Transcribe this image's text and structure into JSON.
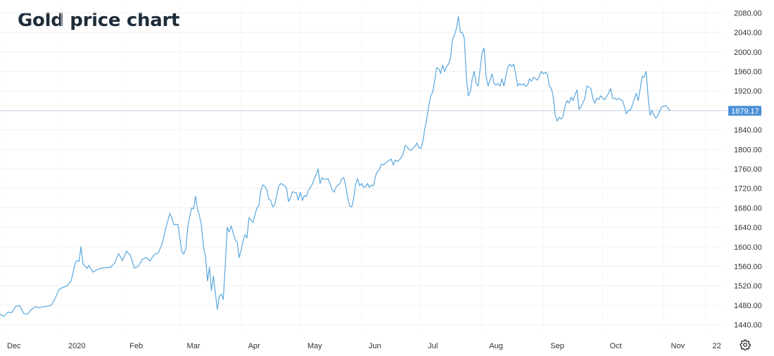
{
  "title": "Gold price chart",
  "settings_icon": "gear-icon",
  "chart_data": {
    "type": "line",
    "title": "Gold price chart",
    "xlabel": "",
    "ylabel": "",
    "ylim": [
      1425,
      2095
    ],
    "xlim": [
      0,
      365
    ],
    "y_ticks": [
      "1440.00",
      "1480.00",
      "1520.00",
      "1560.00",
      "1600.00",
      "1640.00",
      "1680.00",
      "1720.00",
      "1760.00",
      "1800.00",
      "1840.00",
      "1880.00",
      "1920.00",
      "1960.00",
      "2000.00",
      "2040.00",
      "2080.00"
    ],
    "x_ticks": [
      {
        "label": "Dec",
        "day": 0
      },
      {
        "label": "2020",
        "day": 31
      },
      {
        "label": "Feb",
        "day": 62
      },
      {
        "label": "Mar",
        "day": 91
      },
      {
        "label": "Apr",
        "day": 122
      },
      {
        "label": "May",
        "day": 152
      },
      {
        "label": "Jun",
        "day": 183
      },
      {
        "label": "Jul",
        "day": 213
      },
      {
        "label": "Aug",
        "day": 244
      },
      {
        "label": "Sep",
        "day": 275
      },
      {
        "label": "Oct",
        "day": 305
      },
      {
        "label": "Nov",
        "day": 336
      },
      {
        "label": "22",
        "day": 357
      }
    ],
    "last_price": 1879.17,
    "last_price_label": "1879.17",
    "grid": true,
    "colors": {
      "line": "#5aa7dd",
      "price_tag": "#4a90d9",
      "grid": "#f0f0f0"
    },
    "series": [
      {
        "values": [
          [
            0,
            1462
          ],
          [
            2,
            1457
          ],
          [
            4,
            1466
          ],
          [
            6,
            1465
          ],
          [
            8,
            1478
          ],
          [
            10,
            1479
          ],
          [
            12,
            1463
          ],
          [
            14,
            1462
          ],
          [
            16,
            1472
          ],
          [
            18,
            1477
          ],
          [
            20,
            1475
          ],
          [
            22,
            1477
          ],
          [
            24,
            1478
          ],
          [
            26,
            1480
          ],
          [
            28,
            1495
          ],
          [
            30,
            1513
          ],
          [
            32,
            1517
          ],
          [
            34,
            1520
          ],
          [
            36,
            1530
          ],
          [
            38,
            1565
          ],
          [
            39,
            1572
          ],
          [
            40,
            1570
          ],
          [
            41,
            1600
          ],
          [
            42,
            1565
          ],
          [
            44,
            1556
          ],
          [
            45,
            1562
          ],
          [
            47,
            1548
          ],
          [
            50,
            1555
          ],
          [
            53,
            1557
          ],
          [
            56,
            1558
          ],
          [
            58,
            1567
          ],
          [
            60,
            1586
          ],
          [
            62,
            1572
          ],
          [
            64,
            1591
          ],
          [
            66,
            1582
          ],
          [
            68,
            1556
          ],
          [
            70,
            1560
          ],
          [
            72,
            1574
          ],
          [
            74,
            1578
          ],
          [
            76,
            1571
          ],
          [
            78,
            1584
          ],
          [
            80,
            1587
          ],
          [
            82,
            1605
          ],
          [
            84,
            1640
          ],
          [
            86,
            1669
          ],
          [
            87,
            1658
          ],
          [
            88,
            1645
          ],
          [
            90,
            1646
          ],
          [
            92,
            1590
          ],
          [
            93,
            1585
          ],
          [
            94,
            1595
          ],
          [
            95,
            1640
          ],
          [
            96,
            1662
          ],
          [
            97,
            1680
          ],
          [
            98,
            1678
          ],
          [
            99,
            1704
          ],
          [
            100,
            1676
          ],
          [
            101,
            1663
          ],
          [
            102,
            1643
          ],
          [
            103,
            1600
          ],
          [
            104,
            1580
          ],
          [
            105,
            1530
          ],
          [
            106,
            1558
          ],
          [
            107,
            1510
          ],
          [
            108,
            1540
          ],
          [
            109,
            1505
          ],
          [
            110,
            1472
          ],
          [
            111,
            1498
          ],
          [
            112,
            1503
          ],
          [
            113,
            1492
          ],
          [
            114,
            1560
          ],
          [
            115,
            1640
          ],
          [
            116,
            1630
          ],
          [
            117,
            1643
          ],
          [
            118,
            1628
          ],
          [
            119,
            1615
          ],
          [
            120,
            1610
          ],
          [
            121,
            1578
          ],
          [
            122,
            1592
          ],
          [
            123,
            1612
          ],
          [
            124,
            1625
          ],
          [
            125,
            1618
          ],
          [
            126,
            1660
          ],
          [
            127,
            1655
          ],
          [
            128,
            1650
          ],
          [
            130,
            1680
          ],
          [
            131,
            1685
          ],
          [
            132,
            1715
          ],
          [
            133,
            1727
          ],
          [
            134,
            1724
          ],
          [
            135,
            1718
          ],
          [
            136,
            1698
          ],
          [
            137,
            1695
          ],
          [
            138,
            1682
          ],
          [
            139,
            1685
          ],
          [
            140,
            1705
          ],
          [
            141,
            1724
          ],
          [
            142,
            1730
          ],
          [
            144,
            1726
          ],
          [
            145,
            1720
          ],
          [
            146,
            1693
          ],
          [
            147,
            1700
          ],
          [
            148,
            1713
          ],
          [
            150,
            1710
          ],
          [
            151,
            1696
          ],
          [
            152,
            1712
          ],
          [
            153,
            1695
          ],
          [
            154,
            1705
          ],
          [
            155,
            1703
          ],
          [
            156,
            1715
          ],
          [
            158,
            1728
          ],
          [
            159,
            1740
          ],
          [
            160,
            1748
          ],
          [
            161,
            1760
          ],
          [
            162,
            1730
          ],
          [
            163,
            1742
          ],
          [
            164,
            1738
          ],
          [
            166,
            1740
          ],
          [
            167,
            1730
          ],
          [
            168,
            1718
          ],
          [
            169,
            1712
          ],
          [
            170,
            1722
          ],
          [
            172,
            1730
          ],
          [
            173,
            1740
          ],
          [
            174,
            1742
          ],
          [
            175,
            1725
          ],
          [
            176,
            1700
          ],
          [
            177,
            1683
          ],
          [
            178,
            1682
          ],
          [
            179,
            1700
          ],
          [
            180,
            1729
          ],
          [
            181,
            1740
          ],
          [
            182,
            1725
          ],
          [
            183,
            1730
          ],
          [
            184,
            1722
          ],
          [
            185,
            1723
          ],
          [
            186,
            1730
          ],
          [
            187,
            1722
          ],
          [
            188,
            1727
          ],
          [
            189,
            1725
          ],
          [
            190,
            1745
          ],
          [
            191,
            1755
          ],
          [
            192,
            1758
          ],
          [
            193,
            1770
          ],
          [
            194,
            1768
          ],
          [
            196,
            1775
          ],
          [
            198,
            1780
          ],
          [
            199,
            1768
          ],
          [
            200,
            1778
          ],
          [
            201,
            1775
          ],
          [
            202,
            1778
          ],
          [
            203,
            1783
          ],
          [
            204,
            1790
          ],
          [
            205,
            1808
          ],
          [
            206,
            1805
          ],
          [
            207,
            1800
          ],
          [
            208,
            1798
          ],
          [
            210,
            1806
          ],
          [
            211,
            1813
          ],
          [
            212,
            1803
          ],
          [
            213,
            1802
          ],
          [
            214,
            1816
          ],
          [
            215,
            1843
          ],
          [
            216,
            1863
          ],
          [
            217,
            1890
          ],
          [
            218,
            1910
          ],
          [
            219,
            1918
          ],
          [
            220,
            1940
          ],
          [
            221,
            1968
          ],
          [
            222,
            1965
          ],
          [
            223,
            1956
          ],
          [
            224,
            1973
          ],
          [
            225,
            1960
          ],
          [
            226,
            1970
          ],
          [
            227,
            1975
          ],
          [
            228,
            1988
          ],
          [
            229,
            2025
          ],
          [
            230,
            2035
          ],
          [
            231,
            2048
          ],
          [
            232,
            2073
          ],
          [
            233,
            2040
          ],
          [
            234,
            2040
          ],
          [
            235,
            2028
          ],
          [
            236,
            1950
          ],
          [
            237,
            1910
          ],
          [
            238,
            1918
          ],
          [
            239,
            1945
          ],
          [
            240,
            1960
          ],
          [
            241,
            1935
          ],
          [
            242,
            1930
          ],
          [
            243,
            1965
          ],
          [
            244,
            1998
          ],
          [
            245,
            2008
          ],
          [
            246,
            1950
          ],
          [
            247,
            1930
          ],
          [
            248,
            1942
          ],
          [
            249,
            1955
          ],
          [
            250,
            1935
          ],
          [
            251,
            1932
          ],
          [
            252,
            1935
          ],
          [
            253,
            1930
          ],
          [
            254,
            1945
          ],
          [
            255,
            1930
          ],
          [
            256,
            1950
          ],
          [
            257,
            1968
          ],
          [
            258,
            1975
          ],
          [
            259,
            1970
          ],
          [
            260,
            1975
          ],
          [
            261,
            1955
          ],
          [
            262,
            1930
          ],
          [
            263,
            1935
          ],
          [
            264,
            1932
          ],
          [
            265,
            1935
          ],
          [
            266,
            1929
          ],
          [
            267,
            1932
          ],
          [
            268,
            1945
          ],
          [
            269,
            1940
          ],
          [
            270,
            1948
          ],
          [
            271,
            1945
          ],
          [
            272,
            1942
          ],
          [
            273,
            1950
          ],
          [
            274,
            1960
          ],
          [
            275,
            1955
          ],
          [
            276,
            1958
          ],
          [
            277,
            1955
          ],
          [
            278,
            1930
          ],
          [
            279,
            1925
          ],
          [
            280,
            1908
          ],
          [
            281,
            1870
          ],
          [
            282,
            1858
          ],
          [
            283,
            1866
          ],
          [
            284,
            1862
          ],
          [
            285,
            1868
          ],
          [
            286,
            1890
          ],
          [
            287,
            1900
          ],
          [
            288,
            1895
          ],
          [
            289,
            1907
          ],
          [
            290,
            1900
          ],
          [
            291,
            1912
          ],
          [
            292,
            1922
          ],
          [
            293,
            1882
          ],
          [
            294,
            1888
          ],
          [
            295,
            1895
          ],
          [
            296,
            1905
          ],
          [
            297,
            1930
          ],
          [
            298,
            1928
          ],
          [
            299,
            1925
          ],
          [
            300,
            1905
          ],
          [
            301,
            1895
          ],
          [
            302,
            1905
          ],
          [
            303,
            1902
          ],
          [
            304,
            1910
          ],
          [
            305,
            1905
          ],
          [
            306,
            1902
          ],
          [
            308,
            1915
          ],
          [
            309,
            1925
          ],
          [
            310,
            1905
          ],
          [
            311,
            1905
          ],
          [
            312,
            1902
          ],
          [
            313,
            1905
          ],
          [
            315,
            1900
          ],
          [
            316,
            1888
          ],
          [
            317,
            1873
          ],
          [
            318,
            1880
          ],
          [
            319,
            1880
          ],
          [
            320,
            1890
          ],
          [
            321,
            1903
          ],
          [
            322,
            1915
          ],
          [
            323,
            1900
          ],
          [
            324,
            1925
          ],
          [
            325,
            1950
          ],
          [
            326,
            1948
          ],
          [
            327,
            1960
          ],
          [
            328,
            1908
          ],
          [
            329,
            1870
          ],
          [
            330,
            1880
          ],
          [
            331,
            1870
          ],
          [
            332,
            1864
          ],
          [
            333,
            1870
          ],
          [
            334,
            1880
          ],
          [
            335,
            1888
          ],
          [
            336,
            1888
          ],
          [
            337,
            1890
          ],
          [
            338,
            1885
          ],
          [
            339,
            1879
          ]
        ]
      }
    ]
  }
}
